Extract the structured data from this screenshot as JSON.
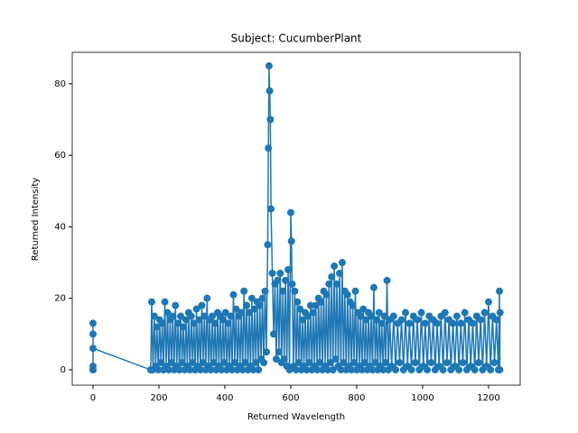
{
  "chart_data": {
    "type": "line",
    "title": "Subject: CucumberPlant",
    "x_label": "Returned Wavelength",
    "y_label": "Returned Intensity",
    "color": "#1f77b4",
    "markers": true,
    "xlim": [
      -63,
      1296
    ],
    "ylim": [
      -4.3,
      88.8
    ],
    "xticks": [
      0,
      200,
      400,
      600,
      800,
      1000,
      1200
    ],
    "yticks": [
      0,
      20,
      40,
      60,
      80
    ],
    "x": [
      0,
      0,
      0,
      0,
      0,
      0,
      175,
      178,
      182,
      186,
      190,
      194,
      198,
      202,
      206,
      210,
      214,
      218,
      222,
      226,
      230,
      234,
      238,
      242,
      246,
      250,
      254,
      258,
      262,
      266,
      270,
      274,
      278,
      282,
      286,
      290,
      294,
      298,
      302,
      306,
      310,
      314,
      318,
      322,
      326,
      330,
      334,
      338,
      342,
      346,
      350,
      354,
      358,
      362,
      366,
      370,
      374,
      378,
      382,
      386,
      390,
      394,
      398,
      402,
      406,
      410,
      414,
      418,
      422,
      426,
      430,
      434,
      438,
      442,
      446,
      450,
      454,
      458,
      462,
      466,
      470,
      474,
      478,
      482,
      486,
      490,
      494,
      498,
      502,
      506,
      510,
      514,
      518,
      522,
      526,
      530,
      532,
      534,
      536,
      538,
      540,
      544,
      548,
      552,
      556,
      560,
      564,
      568,
      572,
      576,
      580,
      584,
      588,
      592,
      596,
      600,
      602,
      604,
      608,
      612,
      616,
      620,
      624,
      628,
      632,
      636,
      640,
      644,
      648,
      652,
      656,
      660,
      664,
      668,
      672,
      676,
      680,
      684,
      688,
      692,
      696,
      700,
      704,
      708,
      712,
      716,
      720,
      724,
      728,
      732,
      736,
      740,
      744,
      748,
      752,
      756,
      760,
      764,
      768,
      772,
      776,
      780,
      784,
      788,
      792,
      796,
      800,
      804,
      808,
      812,
      816,
      820,
      824,
      828,
      832,
      836,
      840,
      844,
      848,
      852,
      856,
      860,
      864,
      868,
      872,
      876,
      880,
      884,
      888,
      892,
      896,
      900,
      906,
      912,
      918,
      924,
      930,
      936,
      942,
      948,
      954,
      960,
      966,
      972,
      978,
      984,
      990,
      996,
      1002,
      1008,
      1014,
      1020,
      1026,
      1032,
      1038,
      1044,
      1050,
      1056,
      1062,
      1068,
      1074,
      1080,
      1086,
      1092,
      1098,
      1104,
      1110,
      1116,
      1122,
      1128,
      1134,
      1140,
      1146,
      1152,
      1158,
      1164,
      1170,
      1176,
      1182,
      1188,
      1194,
      1200,
      1206,
      1212,
      1218,
      1224,
      1230,
      1233,
      1234,
      1235
    ],
    "values": [
      0,
      13,
      1,
      10,
      0,
      6,
      0,
      19,
      0,
      15,
      1,
      12,
      0,
      14,
      2,
      13,
      0,
      19,
      1,
      16,
      0,
      14,
      2,
      15,
      0,
      18,
      1,
      13,
      0,
      15,
      2,
      12,
      0,
      14,
      1,
      16,
      0,
      15,
      2,
      13,
      0,
      17,
      1,
      14,
      0,
      18,
      2,
      15,
      0,
      20,
      1,
      14,
      0,
      15,
      2,
      13,
      0,
      16,
      1,
      15,
      0,
      14,
      2,
      16,
      0,
      13,
      1,
      15,
      0,
      21,
      2,
      17,
      0,
      15,
      1,
      16,
      0,
      22,
      2,
      18,
      0,
      16,
      1,
      20,
      0,
      17,
      2,
      19,
      0,
      18,
      3,
      20,
      2,
      22,
      5,
      35,
      62,
      85,
      78,
      70,
      45,
      27,
      10,
      24,
      3,
      25,
      5,
      27,
      2,
      22,
      3,
      25,
      1,
      28,
      0,
      44,
      36,
      24,
      1,
      22,
      0,
      19,
      2,
      17,
      0,
      14,
      1,
      16,
      0,
      15,
      2,
      18,
      0,
      16,
      1,
      18,
      0,
      20,
      2,
      19,
      0,
      22,
      1,
      21,
      0,
      24,
      2,
      26,
      0,
      29,
      3,
      24,
      1,
      27,
      0,
      30,
      2,
      22,
      0,
      21,
      1,
      19,
      0,
      18,
      2,
      22,
      0,
      16,
      1,
      15,
      0,
      17,
      2,
      14,
      0,
      16,
      1,
      15,
      0,
      23,
      2,
      14,
      0,
      16,
      1,
      13,
      0,
      15,
      2,
      25,
      0,
      14,
      1,
      15,
      0,
      13,
      2,
      14,
      0,
      16,
      1,
      13,
      0,
      15,
      2,
      14,
      0,
      16,
      1,
      13,
      0,
      15,
      2,
      14,
      0,
      13,
      1,
      15,
      0,
      16,
      2,
      14,
      0,
      13,
      1,
      15,
      0,
      13,
      2,
      16,
      0,
      14,
      1,
      13,
      0,
      15,
      2,
      14,
      0,
      16,
      1,
      19,
      0,
      15,
      2,
      14,
      0,
      22,
      0,
      16
    ]
  }
}
